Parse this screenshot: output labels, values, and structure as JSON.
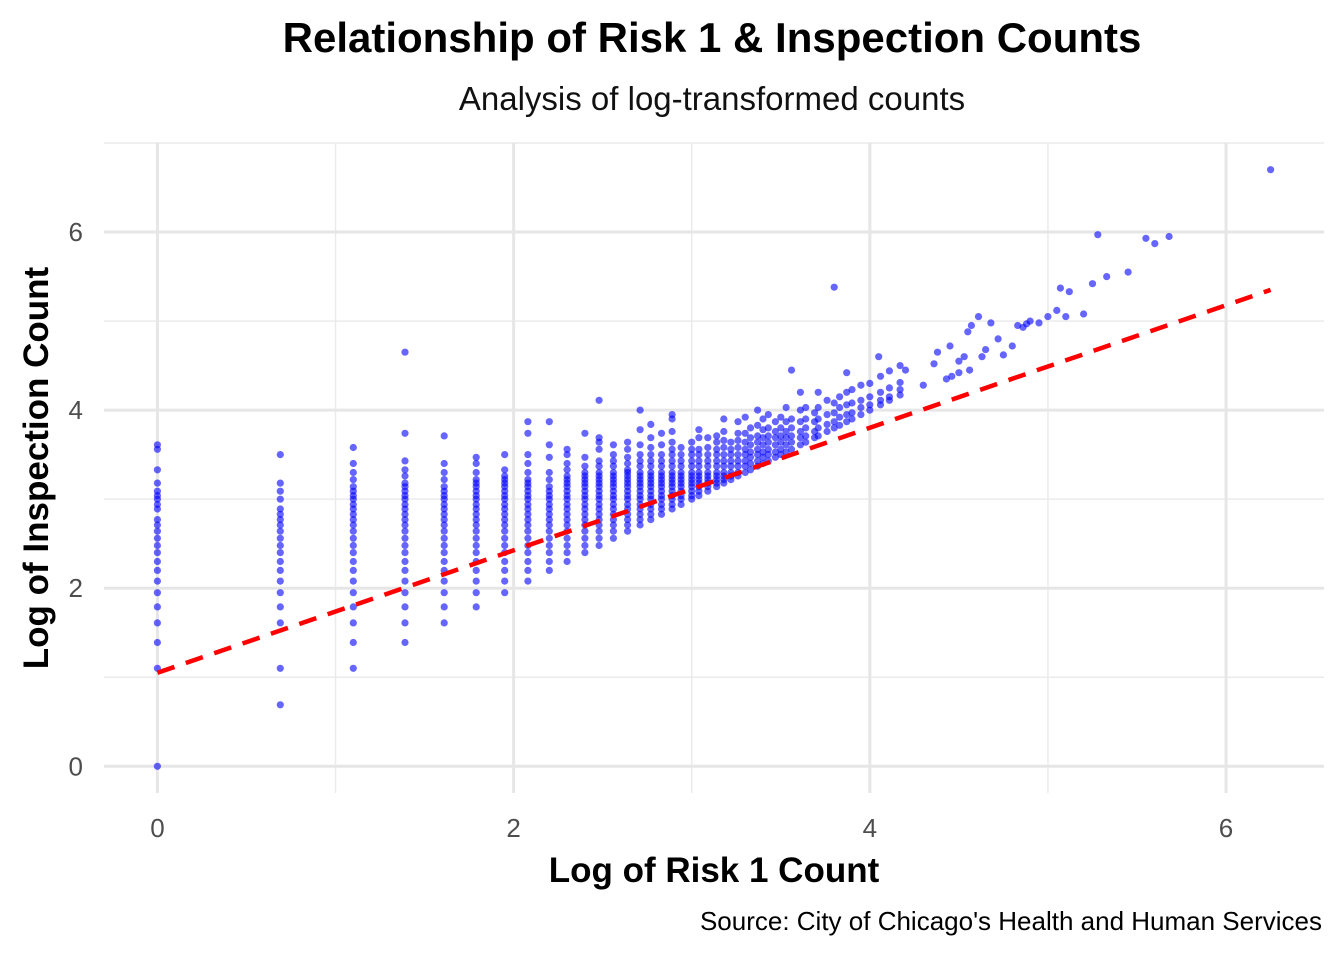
{
  "chart_data": {
    "type": "scatter",
    "title": "Relationship of Risk 1 & Inspection Counts",
    "subtitle": "Analysis of log-transformed counts",
    "xlabel": "Log of Risk 1 Count",
    "ylabel": "Log of Inspection Count",
    "caption": "Source: City of Chicago's Health and Human Services",
    "xlim": [
      -0.3,
      6.55
    ],
    "ylim": [
      -0.3,
      7.0
    ],
    "x_ticks": [
      0,
      2,
      4,
      6
    ],
    "y_ticks": [
      0,
      2,
      4,
      6
    ],
    "x_tick_labels": [
      "0",
      "2",
      "4",
      "6"
    ],
    "y_tick_labels": [
      "0",
      "2",
      "4",
      "6"
    ],
    "grid": true,
    "point_color": "#0000ff",
    "point_opacity": 0.6,
    "trend_line": {
      "color": "#ff0000",
      "style": "dashed",
      "x": [
        0,
        6.25
      ],
      "y": [
        1.05,
        5.35
      ]
    },
    "columns": [
      {
        "x": 0.0,
        "y": [
          0,
          1.1,
          1.39,
          1.61,
          1.79,
          1.95,
          2.08,
          2.2,
          2.3,
          2.4,
          2.48,
          2.56,
          2.64,
          2.71,
          2.77,
          2.89,
          2.94,
          3.0,
          3.04,
          3.09,
          3.18,
          3.33,
          3.56,
          3.61
        ]
      },
      {
        "x": 0.69,
        "y": [
          0.69,
          1.1,
          1.61,
          1.79,
          1.95,
          2.08,
          2.2,
          2.3,
          2.4,
          2.48,
          2.56,
          2.64,
          2.71,
          2.77,
          2.83,
          2.89,
          3.0,
          3.09,
          3.18,
          3.5
        ]
      },
      {
        "x": 1.1,
        "y": [
          1.1,
          1.39,
          1.61,
          1.79,
          1.95,
          2.08,
          2.2,
          2.3,
          2.4,
          2.48,
          2.56,
          2.64,
          2.71,
          2.77,
          2.83,
          2.89,
          2.94,
          3.0,
          3.04,
          3.09,
          3.14,
          3.22,
          3.3,
          3.4,
          3.58
        ]
      },
      {
        "x": 1.39,
        "y": [
          1.39,
          1.61,
          1.79,
          1.95,
          2.08,
          2.2,
          2.3,
          2.4,
          2.48,
          2.56,
          2.64,
          2.71,
          2.77,
          2.83,
          2.89,
          2.94,
          3.0,
          3.04,
          3.09,
          3.14,
          3.18,
          3.26,
          3.33,
          3.43,
          3.74,
          4.65
        ]
      },
      {
        "x": 1.61,
        "y": [
          1.61,
          1.79,
          1.95,
          2.08,
          2.2,
          2.3,
          2.4,
          2.48,
          2.56,
          2.64,
          2.71,
          2.77,
          2.83,
          2.89,
          2.94,
          3.0,
          3.04,
          3.09,
          3.14,
          3.22,
          3.3,
          3.4,
          3.71
        ]
      },
      {
        "x": 1.79,
        "y": [
          1.79,
          1.95,
          2.08,
          2.2,
          2.3,
          2.4,
          2.48,
          2.56,
          2.64,
          2.71,
          2.77,
          2.83,
          2.89,
          2.94,
          3.0,
          3.04,
          3.09,
          3.14,
          3.18,
          3.22,
          3.3,
          3.4,
          3.47
        ]
      },
      {
        "x": 1.95,
        "y": [
          1.95,
          2.08,
          2.2,
          2.3,
          2.4,
          2.48,
          2.56,
          2.64,
          2.71,
          2.77,
          2.83,
          2.89,
          2.94,
          3.0,
          3.04,
          3.09,
          3.14,
          3.18,
          3.22,
          3.26,
          3.33,
          3.5
        ]
      },
      {
        "x": 2.08,
        "y": [
          2.08,
          2.2,
          2.3,
          2.4,
          2.48,
          2.56,
          2.64,
          2.71,
          2.77,
          2.83,
          2.89,
          2.94,
          3.0,
          3.04,
          3.09,
          3.14,
          3.18,
          3.22,
          3.3,
          3.4,
          3.5,
          3.74,
          3.87
        ]
      },
      {
        "x": 2.2,
        "y": [
          2.2,
          2.3,
          2.4,
          2.48,
          2.56,
          2.64,
          2.71,
          2.77,
          2.83,
          2.89,
          2.94,
          3.0,
          3.04,
          3.09,
          3.14,
          3.22,
          3.3,
          3.47,
          3.61,
          3.87
        ]
      },
      {
        "x": 2.3,
        "y": [
          2.3,
          2.4,
          2.48,
          2.56,
          2.64,
          2.71,
          2.77,
          2.83,
          2.89,
          2.94,
          3.0,
          3.04,
          3.09,
          3.14,
          3.18,
          3.22,
          3.26,
          3.33,
          3.4,
          3.5,
          3.56
        ]
      },
      {
        "x": 2.4,
        "y": [
          2.4,
          2.48,
          2.56,
          2.64,
          2.71,
          2.77,
          2.83,
          2.89,
          2.94,
          3.0,
          3.04,
          3.09,
          3.14,
          3.18,
          3.22,
          3.26,
          3.3,
          3.37,
          3.47,
          3.74
        ]
      },
      {
        "x": 2.48,
        "y": [
          2.48,
          2.56,
          2.64,
          2.71,
          2.77,
          2.83,
          2.89,
          2.94,
          3.0,
          3.04,
          3.09,
          3.14,
          3.18,
          3.22,
          3.26,
          3.3,
          3.37,
          3.43,
          3.56,
          3.64,
          3.69,
          4.11
        ]
      },
      {
        "x": 2.56,
        "y": [
          2.56,
          2.64,
          2.71,
          2.77,
          2.83,
          2.89,
          2.94,
          3.0,
          3.04,
          3.09,
          3.14,
          3.18,
          3.22,
          3.26,
          3.3,
          3.37,
          3.43,
          3.5,
          3.61
        ]
      },
      {
        "x": 2.64,
        "y": [
          2.64,
          2.71,
          2.77,
          2.83,
          2.89,
          2.94,
          3.0,
          3.04,
          3.09,
          3.14,
          3.18,
          3.22,
          3.26,
          3.3,
          3.33,
          3.4,
          3.47,
          3.56,
          3.64
        ]
      },
      {
        "x": 2.71,
        "y": [
          2.71,
          2.77,
          2.83,
          2.89,
          2.94,
          3.0,
          3.04,
          3.09,
          3.14,
          3.18,
          3.22,
          3.26,
          3.3,
          3.37,
          3.43,
          3.5,
          3.61,
          3.78,
          4.0
        ]
      },
      {
        "x": 2.77,
        "y": [
          2.77,
          2.83,
          2.89,
          2.94,
          3.0,
          3.04,
          3.09,
          3.14,
          3.18,
          3.22,
          3.26,
          3.3,
          3.37,
          3.43,
          3.5,
          3.58,
          3.69,
          3.84
        ]
      },
      {
        "x": 2.83,
        "y": [
          2.83,
          2.89,
          2.94,
          3.0,
          3.04,
          3.09,
          3.14,
          3.18,
          3.22,
          3.26,
          3.3,
          3.37,
          3.43,
          3.5,
          3.61,
          3.74
        ]
      },
      {
        "x": 2.89,
        "y": [
          2.89,
          2.94,
          3.0,
          3.04,
          3.09,
          3.14,
          3.18,
          3.22,
          3.26,
          3.3,
          3.37,
          3.43,
          3.5,
          3.56,
          3.64,
          3.76,
          3.9,
          3.95
        ]
      },
      {
        "x": 2.94,
        "y": [
          2.94,
          3.0,
          3.04,
          3.09,
          3.14,
          3.18,
          3.22,
          3.26,
          3.3,
          3.37,
          3.43,
          3.5,
          3.58
        ]
      },
      {
        "x": 3.0,
        "y": [
          3.0,
          3.04,
          3.09,
          3.14,
          3.18,
          3.22,
          3.26,
          3.3,
          3.37,
          3.43,
          3.5,
          3.56,
          3.64
        ]
      },
      {
        "x": 3.04,
        "y": [
          3.04,
          3.09,
          3.14,
          3.18,
          3.22,
          3.26,
          3.3,
          3.37,
          3.43,
          3.5,
          3.56,
          3.69,
          3.78
        ]
      },
      {
        "x": 3.09,
        "y": [
          3.09,
          3.14,
          3.18,
          3.22,
          3.26,
          3.3,
          3.37,
          3.43,
          3.5,
          3.58,
          3.69
        ]
      },
      {
        "x": 3.14,
        "y": [
          3.14,
          3.18,
          3.22,
          3.26,
          3.3,
          3.37,
          3.43,
          3.5,
          3.56,
          3.64,
          3.71
        ]
      },
      {
        "x": 3.18,
        "y": [
          3.18,
          3.22,
          3.26,
          3.3,
          3.37,
          3.43,
          3.5,
          3.58,
          3.66,
          3.76,
          3.9
        ]
      },
      {
        "x": 3.22,
        "y": [
          3.22,
          3.26,
          3.3,
          3.37,
          3.43,
          3.5,
          3.56,
          3.64
        ]
      },
      {
        "x": 3.26,
        "y": [
          3.26,
          3.3,
          3.37,
          3.43,
          3.5,
          3.58,
          3.66,
          3.74,
          3.87
        ]
      },
      {
        "x": 3.3,
        "y": [
          3.3,
          3.37,
          3.43,
          3.5,
          3.56,
          3.64,
          3.74,
          3.92
        ]
      },
      {
        "x": 3.33,
        "y": [
          3.33,
          3.4,
          3.47,
          3.53,
          3.61,
          3.69,
          3.8
        ]
      },
      {
        "x": 3.37,
        "y": [
          3.37,
          3.43,
          3.5,
          3.56,
          3.64,
          3.71,
          3.83,
          4.0
        ]
      },
      {
        "x": 3.4,
        "y": [
          3.4,
          3.47,
          3.53,
          3.61,
          3.69,
          3.78,
          3.9
        ]
      },
      {
        "x": 3.43,
        "y": [
          3.43,
          3.5,
          3.56,
          3.64,
          3.71,
          3.8,
          3.95
        ]
      },
      {
        "x": 3.47,
        "y": [
          3.47,
          3.53,
          3.61,
          3.69,
          3.76,
          3.87
        ]
      },
      {
        "x": 3.5,
        "y": [
          3.5,
          3.56,
          3.64,
          3.71,
          3.8,
          3.92
        ]
      },
      {
        "x": 3.53,
        "y": [
          3.53,
          3.61,
          3.69,
          3.76,
          3.87,
          4.03
        ]
      },
      {
        "x": 3.56,
        "y": [
          3.56,
          3.64,
          3.71,
          3.8,
          3.9,
          4.45
        ]
      },
      {
        "x": 3.61,
        "y": [
          3.61,
          3.69,
          3.76,
          3.87,
          4.0,
          4.2
        ]
      },
      {
        "x": 3.64,
        "y": [
          3.64,
          3.71,
          3.8,
          3.9,
          4.03
        ]
      },
      {
        "x": 3.69,
        "y": [
          3.69,
          3.76,
          3.87,
          3.97
        ]
      },
      {
        "x": 3.71,
        "y": [
          3.71,
          3.8,
          3.9,
          4.03,
          4.2
        ]
      },
      {
        "x": 3.76,
        "y": [
          3.76,
          3.84,
          3.95,
          4.11
        ]
      },
      {
        "x": 3.8,
        "y": [
          3.8,
          3.87,
          3.97,
          4.08,
          5.38
        ]
      },
      {
        "x": 3.83,
        "y": [
          3.83,
          3.92,
          4.03,
          4.15
        ]
      },
      {
        "x": 3.87,
        "y": [
          3.87,
          3.95,
          4.06,
          4.2,
          4.42
        ]
      },
      {
        "x": 3.9,
        "y": [
          3.9,
          3.97,
          4.08,
          4.23
        ]
      },
      {
        "x": 3.95,
        "y": [
          3.95,
          4.03,
          4.11,
          4.28
        ]
      },
      {
        "x": 4.0,
        "y": [
          4.0,
          4.06,
          4.15,
          4.3
        ]
      },
      {
        "x": 4.06,
        "y": [
          4.06,
          4.11,
          4.2,
          4.38
        ]
      },
      {
        "x": 4.11,
        "y": [
          4.11,
          4.15,
          4.25,
          4.44
        ]
      },
      {
        "x": 4.17,
        "y": [
          4.17,
          4.23,
          4.31,
          4.5
        ]
      }
    ],
    "extra_points": [
      {
        "x": 4.05,
        "y": 4.6
      },
      {
        "x": 4.2,
        "y": 4.45
      },
      {
        "x": 4.3,
        "y": 4.28
      },
      {
        "x": 4.36,
        "y": 4.52
      },
      {
        "x": 4.38,
        "y": 4.65
      },
      {
        "x": 4.43,
        "y": 4.35
      },
      {
        "x": 4.45,
        "y": 4.72
      },
      {
        "x": 4.46,
        "y": 4.38
      },
      {
        "x": 4.5,
        "y": 4.42
      },
      {
        "x": 4.5,
        "y": 4.55
      },
      {
        "x": 4.53,
        "y": 4.6
      },
      {
        "x": 4.55,
        "y": 4.88
      },
      {
        "x": 4.56,
        "y": 4.45
      },
      {
        "x": 4.57,
        "y": 4.95
      },
      {
        "x": 4.61,
        "y": 5.05
      },
      {
        "x": 4.63,
        "y": 4.6
      },
      {
        "x": 4.65,
        "y": 4.68
      },
      {
        "x": 4.68,
        "y": 4.98
      },
      {
        "x": 4.72,
        "y": 4.8
      },
      {
        "x": 4.75,
        "y": 4.62
      },
      {
        "x": 4.8,
        "y": 4.72
      },
      {
        "x": 4.83,
        "y": 4.95
      },
      {
        "x": 4.86,
        "y": 4.93
      },
      {
        "x": 4.88,
        "y": 4.97
      },
      {
        "x": 4.9,
        "y": 5.0
      },
      {
        "x": 4.95,
        "y": 4.98
      },
      {
        "x": 5.0,
        "y": 5.05
      },
      {
        "x": 5.05,
        "y": 5.12
      },
      {
        "x": 5.1,
        "y": 5.05
      },
      {
        "x": 5.2,
        "y": 5.08
      },
      {
        "x": 5.07,
        "y": 5.37
      },
      {
        "x": 5.12,
        "y": 5.33
      },
      {
        "x": 5.25,
        "y": 5.42
      },
      {
        "x": 5.33,
        "y": 5.5
      },
      {
        "x": 5.45,
        "y": 5.55
      },
      {
        "x": 5.28,
        "y": 5.97
      },
      {
        "x": 5.55,
        "y": 5.93
      },
      {
        "x": 5.6,
        "y": 5.87
      },
      {
        "x": 5.68,
        "y": 5.95
      },
      {
        "x": 6.25,
        "y": 6.7
      }
    ]
  }
}
